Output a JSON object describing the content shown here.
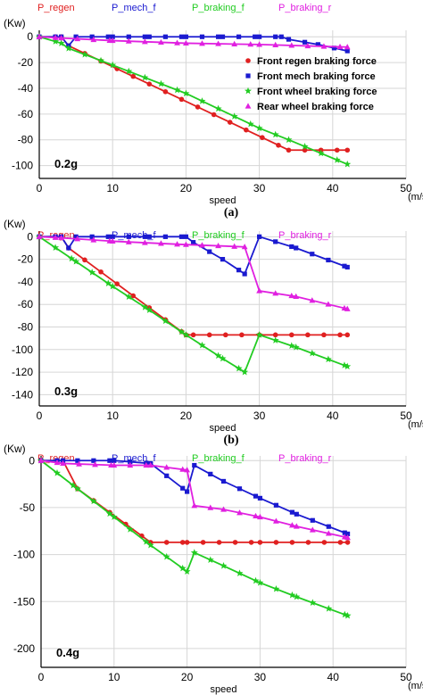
{
  "colors": {
    "P_regen": "#e02020",
    "P_mech_f": "#1a1ad0",
    "P_braking_f": "#22cc22",
    "P_braking_r": "#e020e0",
    "grid": "#d6d6d6",
    "axis": "#000000"
  },
  "chart_data": [
    {
      "type": "line",
      "caption": "(a)",
      "annotation": "0.2g",
      "xlabel": "speed",
      "x_unit": "(m/s)",
      "y_unit": "(Kw)",
      "xlim": [
        0,
        50
      ],
      "ylim": [
        -110,
        5
      ],
      "xticks": [
        0,
        10,
        20,
        30,
        40,
        50
      ],
      "yticks": [
        0,
        -20,
        -40,
        -60,
        -80,
        -100
      ],
      "grid": true,
      "top_labels": [
        "P_regen",
        "P_mech_f",
        "P_braking_f",
        "P_braking_r"
      ],
      "legend": {
        "placement": "right",
        "entries": [
          "Front regen braking force",
          "Front mech braking force",
          "Front wheel braking force",
          "Rear wheel braking force"
        ]
      },
      "series": [
        {
          "key": "P_regen",
          "marker": "circle",
          "x": [
            0,
            3,
            4,
            34,
            42
          ],
          "y": [
            0,
            0,
            -7,
            -88,
            -88
          ]
        },
        {
          "key": "P_mech_f",
          "marker": "square",
          "x": [
            0,
            3,
            4,
            5,
            10,
            15,
            20,
            25,
            30,
            33,
            34,
            38,
            42
          ],
          "y": [
            0,
            0,
            -7,
            0,
            0,
            0,
            0,
            0,
            0,
            0,
            -2,
            -6,
            -11
          ]
        },
        {
          "key": "P_braking_f",
          "marker": "star",
          "x": [
            0,
            3,
            4,
            10,
            20,
            30,
            34,
            42
          ],
          "y": [
            0,
            -5,
            -9,
            -22,
            -44,
            -71,
            -80,
            -99
          ]
        },
        {
          "key": "P_braking_r",
          "marker": "triangle",
          "x": [
            0,
            3,
            10,
            20,
            30,
            42
          ],
          "y": [
            0,
            -1,
            -3,
            -5,
            -6,
            -8
          ]
        }
      ]
    },
    {
      "type": "line",
      "caption": "(b)",
      "annotation": "0.3g",
      "xlabel": "speed",
      "x_unit": "(m/s)",
      "y_unit": "(Kw)",
      "xlim": [
        0,
        50
      ],
      "ylim": [
        -150,
        5
      ],
      "xticks": [
        0,
        10,
        20,
        30,
        40,
        50
      ],
      "yticks": [
        0,
        -20,
        -40,
        -60,
        -80,
        -100,
        -120,
        -140
      ],
      "grid": true,
      "top_labels": [
        "P_regen",
        "P_mech_f",
        "P_braking_f",
        "P_braking_r"
      ],
      "series": [
        {
          "key": "P_regen",
          "marker": "circle",
          "x": [
            0,
            3,
            4,
            20,
            21,
            30,
            42
          ],
          "y": [
            0,
            0,
            -10,
            -87,
            -87,
            -87,
            -87
          ]
        },
        {
          "key": "P_mech_f",
          "marker": "square",
          "x": [
            0,
            3,
            4,
            5,
            10,
            15,
            20,
            21,
            25,
            28,
            30,
            35,
            42
          ],
          "y": [
            0,
            0,
            -10,
            0,
            0,
            0,
            0,
            -5,
            -20,
            -33,
            0,
            -10,
            -27
          ]
        },
        {
          "key": "P_braking_f",
          "marker": "star",
          "x": [
            0,
            5,
            10,
            15,
            20,
            25,
            28,
            30,
            35,
            42
          ],
          "y": [
            0,
            -22,
            -44,
            -65,
            -87,
            -108,
            -120,
            -87,
            -98,
            -115
          ]
        },
        {
          "key": "P_braking_r",
          "marker": "triangle",
          "x": [
            0,
            3,
            10,
            20,
            28,
            30,
            35,
            42
          ],
          "y": [
            0,
            -1,
            -4,
            -7,
            -9,
            -48,
            -53,
            -64
          ]
        }
      ]
    },
    {
      "type": "line",
      "caption": "(c)",
      "annotation": "0.4g",
      "xlabel": "speed",
      "x_unit": "(m/s)",
      "y_unit": "(Kw)",
      "xlim": [
        0,
        50
      ],
      "ylim": [
        -220,
        5
      ],
      "xticks": [
        0,
        10,
        20,
        30,
        40,
        50
      ],
      "yticks": [
        0,
        -50,
        -100,
        -150,
        -200
      ],
      "grid": true,
      "top_labels": [
        "P_regen",
        "P_mech_f",
        "P_braking_f",
        "P_braking_r"
      ],
      "series": [
        {
          "key": "P_regen",
          "marker": "circle",
          "x": [
            0,
            3,
            5,
            15,
            20,
            30,
            42
          ],
          "y": [
            0,
            0,
            -30,
            -87,
            -87,
            -87,
            -87
          ]
        },
        {
          "key": "P_mech_f",
          "marker": "square",
          "x": [
            0,
            3,
            5,
            10,
            15,
            20,
            21,
            25,
            30,
            35,
            42
          ],
          "y": [
            0,
            0,
            0,
            0,
            -3,
            -33,
            -5,
            -22,
            -40,
            -57,
            -78
          ]
        },
        {
          "key": "P_braking_f",
          "marker": "star",
          "x": [
            0,
            5,
            10,
            15,
            20,
            21,
            25,
            30,
            35,
            42
          ],
          "y": [
            0,
            -30,
            -60,
            -90,
            -118,
            -98,
            -112,
            -130,
            -145,
            -165
          ]
        },
        {
          "key": "P_braking_r",
          "marker": "triangle",
          "x": [
            0,
            3,
            10,
            15,
            20,
            21,
            25,
            30,
            35,
            42
          ],
          "y": [
            0,
            -3,
            -5,
            -5,
            -10,
            -48,
            -52,
            -60,
            -70,
            -82
          ]
        }
      ]
    }
  ]
}
